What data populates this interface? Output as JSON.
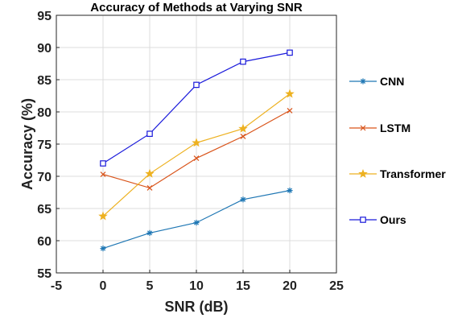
{
  "chart_data": {
    "type": "line",
    "title": "Accuracy of Methods at Varying SNR",
    "xlabel": "SNR (dB)",
    "ylabel": "Accuracy (%)",
    "xlim": [
      -5,
      25
    ],
    "ylim": [
      55,
      95
    ],
    "xticks": [
      -5,
      0,
      5,
      10,
      15,
      20,
      25
    ],
    "yticks": [
      55,
      60,
      65,
      70,
      75,
      80,
      85,
      90,
      95
    ],
    "grid": true,
    "legend_position": "right",
    "x": [
      0,
      5,
      10,
      15,
      20
    ],
    "series": [
      {
        "name": "CNN",
        "values": [
          58.8,
          61.2,
          62.8,
          66.4,
          67.8
        ],
        "color": "#1f77b4",
        "marker": "asterisk"
      },
      {
        "name": "LSTM",
        "values": [
          70.3,
          68.2,
          72.8,
          76.2,
          80.2
        ],
        "color": "#d95319",
        "marker": "x"
      },
      {
        "name": "Transformer",
        "values": [
          63.8,
          70.4,
          75.2,
          77.4,
          82.8
        ],
        "color": "#edb120",
        "marker": "star"
      },
      {
        "name": "Ours",
        "values": [
          72.0,
          76.6,
          84.2,
          87.8,
          89.2
        ],
        "color": "#1a1adb",
        "marker": "square"
      }
    ]
  }
}
